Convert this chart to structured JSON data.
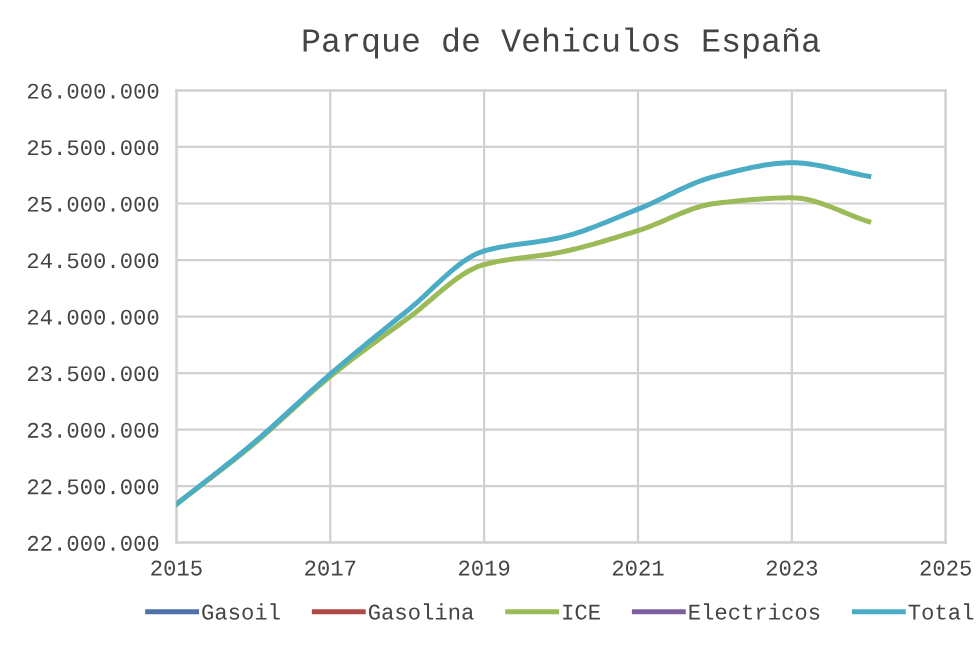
{
  "chart_data": {
    "type": "line",
    "title": "Parque de Vehiculos España",
    "x": [
      2015,
      2016,
      2017,
      2018,
      2019,
      2020,
      2021,
      2022,
      2023,
      2024
    ],
    "series": [
      {
        "name": "Gasoil",
        "color": "#4f70a8",
        "values": [
          null,
          null,
          null,
          null,
          null,
          null,
          null,
          null,
          null,
          null
        ]
      },
      {
        "name": "Gasolina",
        "color": "#b04a45",
        "values": [
          null,
          null,
          null,
          null,
          null,
          null,
          null,
          null,
          null,
          null
        ]
      },
      {
        "name": "ICE",
        "color": "#9bbb59",
        "values": [
          22340000,
          22870000,
          23470000,
          23980000,
          24460000,
          24570000,
          24760000,
          25000000,
          25050000,
          24840000
        ]
      },
      {
        "name": "Electricos",
        "color": "#7d5fa0",
        "values": [
          null,
          null,
          null,
          null,
          null,
          null,
          null,
          null,
          null,
          null
        ]
      },
      {
        "name": "Total",
        "color": "#4bacc6",
        "values": [
          22340000,
          22880000,
          23490000,
          24050000,
          24580000,
          24700000,
          24950000,
          25240000,
          25360000,
          25240000
        ]
      }
    ],
    "xlim": [
      2015,
      2025
    ],
    "xticks": [
      2015,
      2017,
      2019,
      2021,
      2023,
      2025
    ],
    "ylim": [
      22000000,
      26000000
    ],
    "yticks": [
      {
        "value": 22000000,
        "label": "22.000.000"
      },
      {
        "value": 22500000,
        "label": "22.500.000"
      },
      {
        "value": 23000000,
        "label": "23.000.000"
      },
      {
        "value": 23500000,
        "label": "23.500.000"
      },
      {
        "value": 24000000,
        "label": "24.000.000"
      },
      {
        "value": 24500000,
        "label": "24.500.000"
      },
      {
        "value": 25000000,
        "label": "25.000.000"
      },
      {
        "value": 25500000,
        "label": "25.500.000"
      },
      {
        "value": 26000000,
        "label": "26.000.000"
      }
    ],
    "grid": true,
    "legend": "bottom",
    "marker": "none",
    "line_style": "solid"
  }
}
